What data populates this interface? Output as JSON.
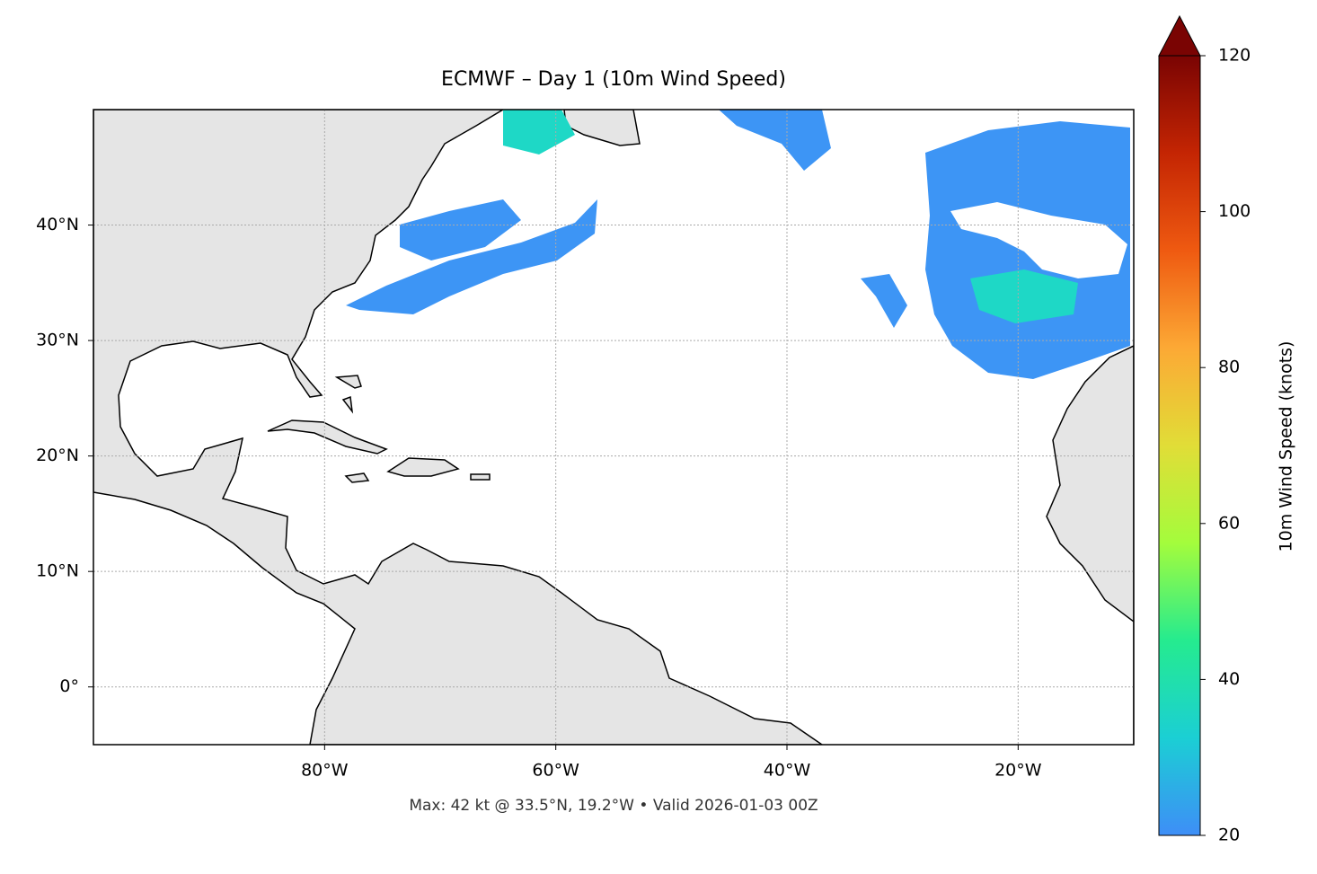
{
  "chart_data": {
    "type": "map",
    "title": "ECMWF – Day 1 (10m Wind Speed)",
    "footer": "Max: 42 kt @ 33.5°N, 19.2°W • Valid 2026-01-03 00Z",
    "xlim": [
      -100,
      -10
    ],
    "ylim": [
      -5,
      50
    ],
    "xticks": [
      {
        "value": -80,
        "label": "80°W"
      },
      {
        "value": -60,
        "label": "60°W"
      },
      {
        "value": -40,
        "label": "40°W"
      },
      {
        "value": -20,
        "label": "20°W"
      }
    ],
    "yticks": [
      {
        "value": 0,
        "label": "0°"
      },
      {
        "value": 10,
        "label": "10°N"
      },
      {
        "value": 20,
        "label": "20°N"
      },
      {
        "value": 30,
        "label": "30°N"
      },
      {
        "value": 40,
        "label": "40°N"
      }
    ],
    "grid": true,
    "colorbar": {
      "label": "10m Wind Speed (knots)",
      "lim": [
        20,
        120
      ],
      "ticks": [
        20,
        40,
        60,
        80,
        100,
        120
      ],
      "colormap": [
        "#3e8ef7",
        "#1bcfd4",
        "#25eb8f",
        "#a4fc3c",
        "#e1dd37",
        "#fca935",
        "#ef5a11",
        "#c42503",
        "#7a0403"
      ],
      "extend_color": "#7a0403"
    }
  }
}
